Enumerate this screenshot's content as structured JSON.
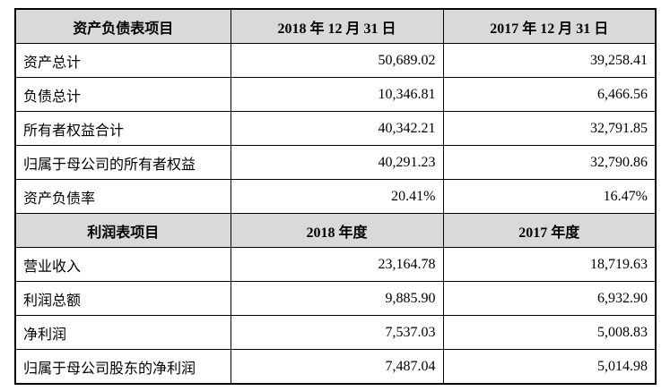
{
  "balance_header": {
    "label": "资产负债表项目",
    "col1": "2018 年 12 月 31 日",
    "col2": "2017 年 12 月 31 日"
  },
  "balance_rows": [
    {
      "label": "资产总计",
      "v2018": "50,689.02",
      "v2017": "39,258.41"
    },
    {
      "label": "负债总计",
      "v2018": "10,346.81",
      "v2017": "6,466.56"
    },
    {
      "label": "所有者权益合计",
      "v2018": "40,342.21",
      "v2017": "32,791.85"
    },
    {
      "label": "归属于母公司的所有者权益",
      "v2018": "40,291.23",
      "v2017": "32,790.86"
    },
    {
      "label": "资产负债率",
      "v2018": "20.41%",
      "v2017": "16.47%"
    }
  ],
  "income_header": {
    "label": "利润表项目",
    "col1": "2018 年度",
    "col2": "2017 年度"
  },
  "income_rows": [
    {
      "label": "营业收入",
      "v2018": "23,164.78",
      "v2017": "18,719.63"
    },
    {
      "label": "利润总额",
      "v2018": "9,885.90",
      "v2017": "6,932.90"
    },
    {
      "label": "净利润",
      "v2018": "7,537.03",
      "v2017": "5,008.83"
    },
    {
      "label": "归属于母公司股东的净利润",
      "v2018": "7,487.04",
      "v2017": "5,014.98"
    }
  ]
}
